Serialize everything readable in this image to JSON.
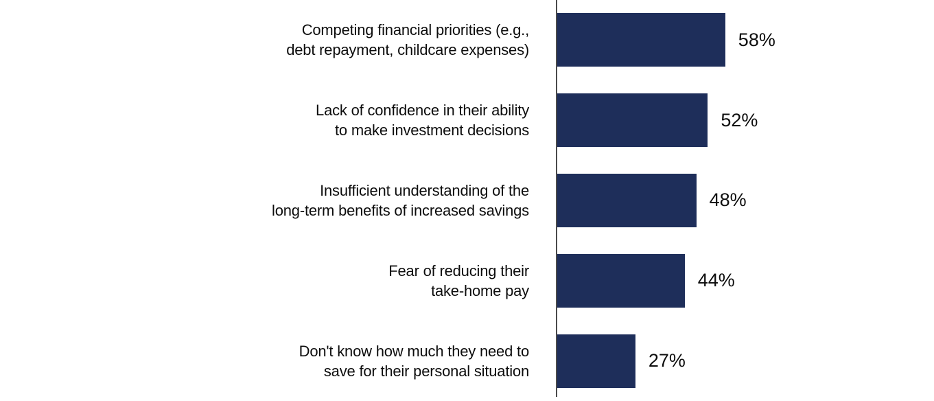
{
  "chart_data": {
    "type": "bar",
    "orientation": "horizontal",
    "title": "",
    "categories": [
      "Competing financial priorities (e.g., debt repayment, childcare expenses)",
      "Lack of confidence in their ability to make investment decisions",
      "Insufficient understanding of the long-term benefits of increased savings",
      "Fear of reducing their take-home pay",
      "Don't know how much they need to save for their personal situation"
    ],
    "values": [
      58,
      52,
      48,
      44,
      27
    ],
    "data_labels": [
      "58%",
      "52%",
      "48%",
      "44%",
      "27%"
    ],
    "xlabel": "",
    "ylabel": "",
    "grid": "off",
    "legend": "none",
    "value_axis": "hidden",
    "bar_color": "#1e2e5a",
    "axis_color": "#4a4a4b",
    "text_color": "#0d0d0d"
  },
  "rows": [
    {
      "line1": "Competing financial priorities (e.g.,",
      "line2": "debt repayment, childcare expenses)",
      "pct": "58%"
    },
    {
      "line1": "Lack of confidence in their ability",
      "line2": "to make investment decisions",
      "pct": "52%"
    },
    {
      "line1": "Insufficient understanding of the",
      "line2": "long-term benefits of increased savings",
      "pct": "48%"
    },
    {
      "line1": "Fear of reducing their",
      "line2": "take-home pay",
      "pct": "44%"
    },
    {
      "line1": "Don't know how much they need to",
      "line2": "save for their personal situation",
      "pct": "27%"
    }
  ]
}
